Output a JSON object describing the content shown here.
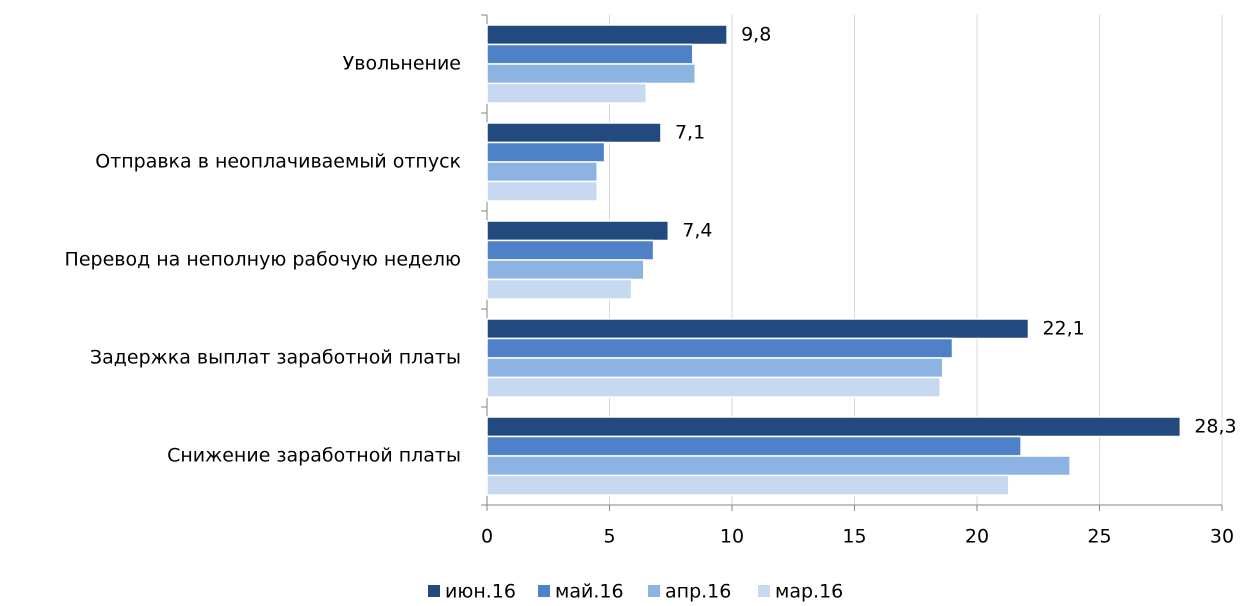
{
  "chart_data": {
    "type": "hbar",
    "categories": [
      "Увольнение",
      "Отправка в неоплачиваемый отпуск",
      "Перевод на неполную рабочую неделю",
      "Задержка выплат заработной платы",
      "Снижение заработной платы"
    ],
    "series": [
      {
        "name": "июн.16",
        "color": "#234a7f",
        "values": [
          9.8,
          7.1,
          7.4,
          22.1,
          28.3
        ],
        "value_labels": [
          "9,8",
          "7,1",
          "7,4",
          "22,1",
          "28,3"
        ]
      },
      {
        "name": "май.16",
        "color": "#4f81c9",
        "values": [
          8.4,
          4.8,
          6.8,
          19.0,
          21.8
        ]
      },
      {
        "name": "апр.16",
        "color": "#8db3e2",
        "values": [
          8.5,
          4.5,
          6.4,
          18.6,
          23.8
        ]
      },
      {
        "name": "мар.16",
        "color": "#c6d9f1",
        "values": [
          6.5,
          4.5,
          5.9,
          18.5,
          21.3
        ]
      }
    ],
    "xlim": [
      0,
      30
    ],
    "xticks": [
      0,
      5,
      10,
      15,
      20,
      25,
      30
    ],
    "grid": true
  }
}
